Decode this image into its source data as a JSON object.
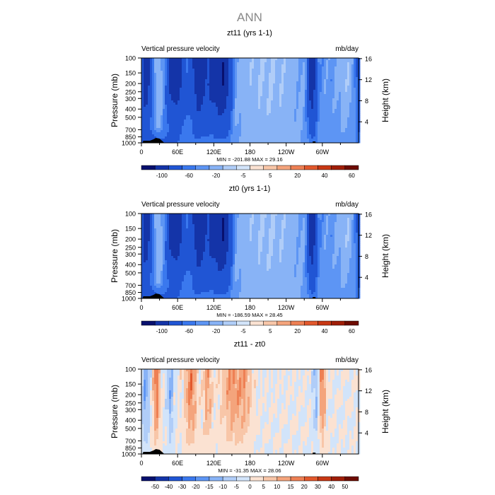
{
  "figure": {
    "title": "ANN"
  },
  "chart_data": [
    {
      "type": "heatmap",
      "title": "zt11 (yrs 1-1)",
      "subtitle_left": "Vertical pressure velocity",
      "subtitle_right": "mb/day",
      "ylabel": "Pressure (mb)",
      "ylabel_right": "Height (km)",
      "x_ticks": [
        "0",
        "60E",
        "120E",
        "180",
        "120W",
        "60W"
      ],
      "x_tick_lon": [
        0,
        60,
        120,
        180,
        240,
        300
      ],
      "xlim": [
        0,
        360
      ],
      "y_ticks": [
        "100",
        "150",
        "200",
        "250",
        "300",
        "400",
        "500",
        "700",
        "850",
        "1000"
      ],
      "y_tick_values": [
        100,
        150,
        200,
        250,
        300,
        400,
        500,
        700,
        850,
        1000
      ],
      "ylim": [
        1000,
        100
      ],
      "y_scale": "log",
      "height_ticks": [
        "4",
        "8",
        "12",
        "16"
      ],
      "height_tick_values": [
        4,
        8,
        12,
        16
      ],
      "stats": "MIN = -201.88   MAX =  29.16",
      "colorbar_levels": [
        "-100",
        "-60",
        "-20",
        "-5",
        "5",
        "20",
        "40",
        "60"
      ],
      "colorbar_colors": [
        "#08106e",
        "#1434a8",
        "#2055d4",
        "#3a78ee",
        "#5d95f4",
        "#88b3f6",
        "#b0cdf8",
        "#d2e4fa",
        "#fbe2d2",
        "#f8c6a8",
        "#f4a47c",
        "#ee8054",
        "#e2582c",
        "#c83814",
        "#a01e08",
        "#6e0c02"
      ],
      "data_ranges": {
        "min": -201.88,
        "max": 29.16
      }
    },
    {
      "type": "heatmap",
      "title": "zt0 (yrs 1-1)",
      "subtitle_left": "Vertical pressure velocity",
      "subtitle_right": "mb/day",
      "ylabel": "Pressure (mb)",
      "ylabel_right": "Height (km)",
      "x_ticks": [
        "0",
        "60E",
        "120E",
        "180",
        "120W",
        "60W"
      ],
      "x_tick_lon": [
        0,
        60,
        120,
        180,
        240,
        300
      ],
      "xlim": [
        0,
        360
      ],
      "y_ticks": [
        "100",
        "150",
        "200",
        "250",
        "300",
        "400",
        "500",
        "700",
        "850",
        "1000"
      ],
      "y_tick_values": [
        100,
        150,
        200,
        250,
        300,
        400,
        500,
        700,
        850,
        1000
      ],
      "ylim": [
        1000,
        100
      ],
      "y_scale": "log",
      "height_ticks": [
        "4",
        "8",
        "12",
        "16"
      ],
      "height_tick_values": [
        4,
        8,
        12,
        16
      ],
      "stats": "MIN = -186.59   MAX =  28.45",
      "colorbar_levels": [
        "-100",
        "-60",
        "-20",
        "-5",
        "5",
        "20",
        "40",
        "60"
      ],
      "colorbar_colors": [
        "#08106e",
        "#1434a8",
        "#2055d4",
        "#3a78ee",
        "#5d95f4",
        "#88b3f6",
        "#b0cdf8",
        "#d2e4fa",
        "#fbe2d2",
        "#f8c6a8",
        "#f4a47c",
        "#ee8054",
        "#e2582c",
        "#c83814",
        "#a01e08",
        "#6e0c02"
      ],
      "data_ranges": {
        "min": -186.59,
        "max": 28.45
      }
    },
    {
      "type": "heatmap",
      "title": "zt11 - zt0",
      "subtitle_left": "Vertical pressure velocity",
      "subtitle_right": "mb/day",
      "ylabel": "Pressure (mb)",
      "ylabel_right": "Height (km)",
      "x_ticks": [
        "0",
        "60E",
        "120E",
        "180",
        "120W",
        "60W"
      ],
      "x_tick_lon": [
        0,
        60,
        120,
        180,
        240,
        300
      ],
      "xlim": [
        0,
        360
      ],
      "y_ticks": [
        "100",
        "150",
        "200",
        "250",
        "300",
        "400",
        "500",
        "700",
        "850",
        "1000"
      ],
      "y_tick_values": [
        100,
        150,
        200,
        250,
        300,
        400,
        500,
        700,
        850,
        1000
      ],
      "ylim": [
        1000,
        100
      ],
      "y_scale": "log",
      "height_ticks": [
        "4",
        "8",
        "12",
        "16"
      ],
      "height_tick_values": [
        4,
        8,
        12,
        16
      ],
      "stats": "MIN = -31.35   MAX =  28.06",
      "colorbar_levels": [
        "-50",
        "-40",
        "-30",
        "-20",
        "-15",
        "-10",
        "-5",
        "0",
        "5",
        "10",
        "15",
        "20",
        "30",
        "40",
        "50"
      ],
      "colorbar_colors": [
        "#08106e",
        "#1434a8",
        "#2055d4",
        "#3a78ee",
        "#5d95f4",
        "#88b3f6",
        "#b0cdf8",
        "#d2e4fa",
        "#fbe2d2",
        "#f8c6a8",
        "#f4a47c",
        "#ee8054",
        "#e2582c",
        "#c83814",
        "#a01e08",
        "#6e0c02"
      ],
      "data_ranges": {
        "min": -31.35,
        "max": 28.06
      }
    }
  ]
}
